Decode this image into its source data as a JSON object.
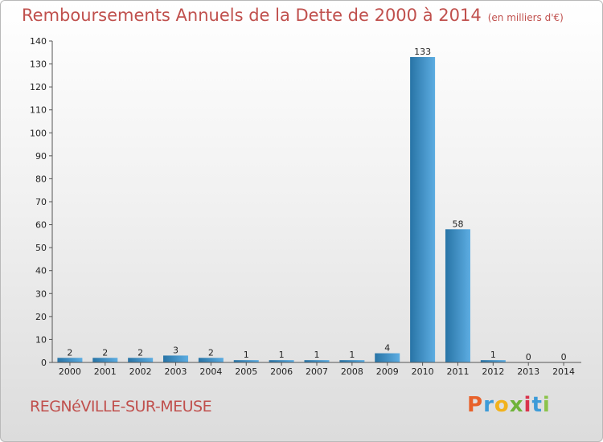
{
  "header": {
    "title": "Remboursements Annuels de la Dette de 2000 à 2014",
    "unit": "(en milliers d'€)"
  },
  "footer": {
    "city": "REGNéVILLE-SUR-MEUSE",
    "brand": "Proxiti",
    "brand_colors": [
      "#e8622b",
      "#3c9bd8",
      "#f2b21c",
      "#6fb33a",
      "#d9334c",
      "#3c9bd8",
      "#8bc34a"
    ]
  },
  "colors": {
    "bar_light": "#5dade2",
    "bar_dark": "#2874a6",
    "title": "#c0504d"
  },
  "chart_data": {
    "type": "bar",
    "categories": [
      "2000",
      "2001",
      "2002",
      "2003",
      "2004",
      "2005",
      "2006",
      "2007",
      "2008",
      "2009",
      "2010",
      "2011",
      "2012",
      "2013",
      "2014"
    ],
    "values": [
      2,
      2,
      2,
      3,
      2,
      1,
      1,
      1,
      1,
      4,
      133,
      58,
      1,
      0,
      0
    ],
    "ylim": [
      0,
      140
    ],
    "yticks": [
      0,
      10,
      20,
      30,
      40,
      50,
      60,
      70,
      80,
      90,
      100,
      110,
      120,
      130,
      140
    ],
    "grid": false
  }
}
